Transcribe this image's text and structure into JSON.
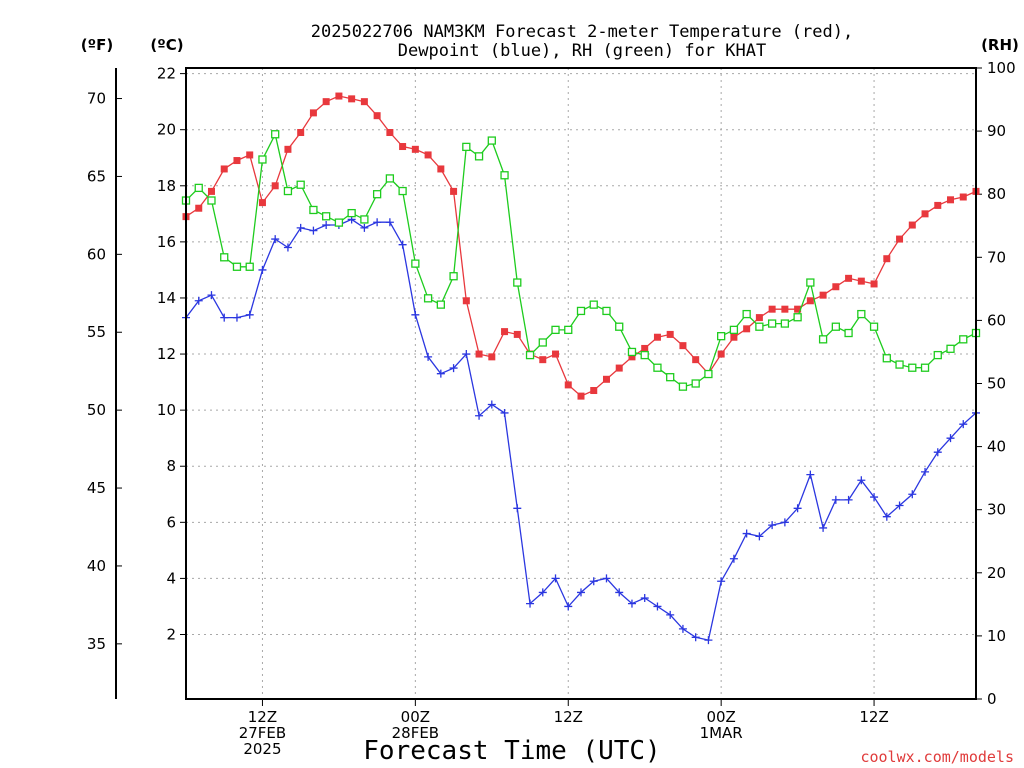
{
  "chart_data": {
    "type": "line",
    "title_lines": [
      "2025022706 NAM3KM Forecast 2-meter Temperature (red),",
      "Dewpoint (blue), RH (green) for KHAT"
    ],
    "xlabel": "Forecast Time (UTC)",
    "credit": "coolwx.com/models",
    "axes": {
      "left_outer_unit": "(ºF)",
      "left_inner_unit": "(ºC)",
      "right_unit": "(RH)",
      "celsius_range": [
        -0.3,
        22.2
      ],
      "rh_range": [
        0,
        100
      ],
      "celsius_ticks": [
        "2",
        "4",
        "6",
        "8",
        "10",
        "12",
        "14",
        "16",
        "18",
        "20",
        "22"
      ],
      "fahrenheit_ticks": [
        "35",
        "40",
        "45",
        "50",
        "55",
        "60",
        "65",
        "70"
      ],
      "rh_ticks": [
        "0",
        "10",
        "20",
        "30",
        "40",
        "50",
        "60",
        "70",
        "80",
        "90",
        "100"
      ]
    },
    "x_hours": [
      0,
      62
    ],
    "x_ticks": [
      {
        "hour": 6,
        "lines": [
          "12Z",
          "27FEB",
          "2025"
        ]
      },
      {
        "hour": 18,
        "lines": [
          "00Z",
          "28FEB"
        ]
      },
      {
        "hour": 30,
        "lines": [
          "12Z"
        ]
      },
      {
        "hour": 42,
        "lines": [
          "00Z",
          "1MAR"
        ]
      },
      {
        "hour": 54,
        "lines": [
          "12Z"
        ]
      }
    ],
    "series": [
      {
        "name": "Temperature",
        "color": "#e8383d",
        "marker": "filled-square",
        "axis": "celsius",
        "x": [
          0,
          1,
          2,
          3,
          4,
          5,
          6,
          7,
          8,
          9,
          10,
          11,
          12,
          13,
          14,
          15,
          16,
          17,
          18,
          19,
          20,
          21,
          22,
          23,
          24,
          25,
          26,
          27,
          28,
          29,
          30,
          31,
          32,
          33,
          34,
          35,
          36,
          37,
          38,
          39,
          40,
          41,
          42,
          43,
          44,
          45,
          46,
          47,
          48,
          49,
          50,
          51,
          52,
          53,
          54,
          55,
          56,
          57,
          58,
          59,
          60,
          61,
          62
        ],
        "values": [
          16.9,
          17.2,
          17.8,
          18.6,
          18.9,
          19.1,
          17.4,
          18.0,
          19.3,
          19.9,
          20.6,
          21.0,
          21.2,
          21.1,
          21.0,
          20.5,
          19.9,
          19.4,
          19.3,
          19.1,
          18.6,
          17.8,
          13.9,
          12.0,
          11.9,
          12.8,
          12.7,
          12.0,
          11.8,
          12.0,
          10.9,
          10.5,
          10.7,
          11.1,
          11.5,
          11.9,
          12.2,
          12.6,
          12.7,
          12.3,
          11.8,
          11.3,
          12.0,
          12.6,
          12.9,
          13.3,
          13.6,
          13.6,
          13.6,
          13.9,
          14.1,
          14.4,
          14.7,
          14.6,
          14.5,
          15.4,
          16.1,
          16.6,
          17.0,
          17.3,
          17.5,
          17.6,
          17.8
        ]
      },
      {
        "name": "Dewpoint",
        "color": "#2b37e0",
        "marker": "plus",
        "axis": "celsius",
        "x": [
          0,
          1,
          2,
          3,
          4,
          5,
          6,
          7,
          8,
          9,
          10,
          11,
          12,
          13,
          14,
          15,
          16,
          17,
          18,
          19,
          20,
          21,
          22,
          23,
          24,
          25,
          26,
          27,
          28,
          29,
          30,
          31,
          32,
          33,
          34,
          35,
          36,
          37,
          38,
          39,
          40,
          41,
          42,
          43,
          44,
          45,
          46,
          47,
          48,
          49,
          50,
          51,
          52,
          53,
          54,
          55,
          56,
          57,
          58,
          59,
          60,
          61,
          62
        ],
        "values": [
          13.3,
          13.9,
          14.1,
          13.3,
          13.3,
          13.4,
          15.0,
          16.1,
          15.8,
          16.5,
          16.4,
          16.6,
          16.6,
          16.8,
          16.5,
          16.7,
          16.7,
          15.9,
          13.4,
          11.9,
          11.3,
          11.5,
          12.0,
          9.8,
          10.2,
          9.9,
          6.5,
          3.1,
          3.5,
          4.0,
          3.0,
          3.5,
          3.9,
          4.0,
          3.5,
          3.1,
          3.3,
          3.0,
          2.7,
          2.2,
          1.9,
          1.8,
          3.9,
          4.7,
          5.6,
          5.5,
          5.9,
          6.0,
          6.5,
          7.7,
          5.8,
          6.8,
          6.8,
          7.5,
          6.9,
          6.2,
          6.6,
          7.0,
          7.8,
          8.5,
          9.0,
          9.5,
          9.9
        ]
      },
      {
        "name": "RH",
        "color": "#1ecc1e",
        "marker": "open-square",
        "axis": "rh",
        "x": [
          0,
          1,
          2,
          3,
          4,
          5,
          6,
          7,
          8,
          9,
          10,
          11,
          12,
          13,
          14,
          15,
          16,
          17,
          18,
          19,
          20,
          21,
          22,
          23,
          24,
          25,
          26,
          27,
          28,
          29,
          30,
          31,
          32,
          33,
          34,
          35,
          36,
          37,
          38,
          39,
          40,
          41,
          42,
          43,
          44,
          45,
          46,
          47,
          48,
          49,
          50,
          51,
          52,
          53,
          54,
          55,
          56,
          57,
          58,
          59,
          60,
          61,
          62
        ],
        "values": [
          79,
          81,
          79,
          70,
          68.5,
          68.5,
          85.5,
          89.5,
          80.5,
          81.5,
          77.5,
          76.5,
          75.5,
          77,
          76,
          80,
          82.5,
          80.5,
          69,
          63.5,
          62.5,
          67,
          87.5,
          86,
          88.5,
          83,
          66,
          54.5,
          56.5,
          58.5,
          58.5,
          61.5,
          62.5,
          61.5,
          59,
          55,
          54.5,
          52.5,
          51,
          49.5,
          50,
          51.5,
          57.5,
          58.5,
          61,
          59,
          59.5,
          59.5,
          60.5,
          66,
          57,
          59,
          58,
          61,
          59,
          54,
          53,
          52.5,
          52.5,
          54.5,
          55.5,
          57,
          58
        ]
      }
    ]
  }
}
